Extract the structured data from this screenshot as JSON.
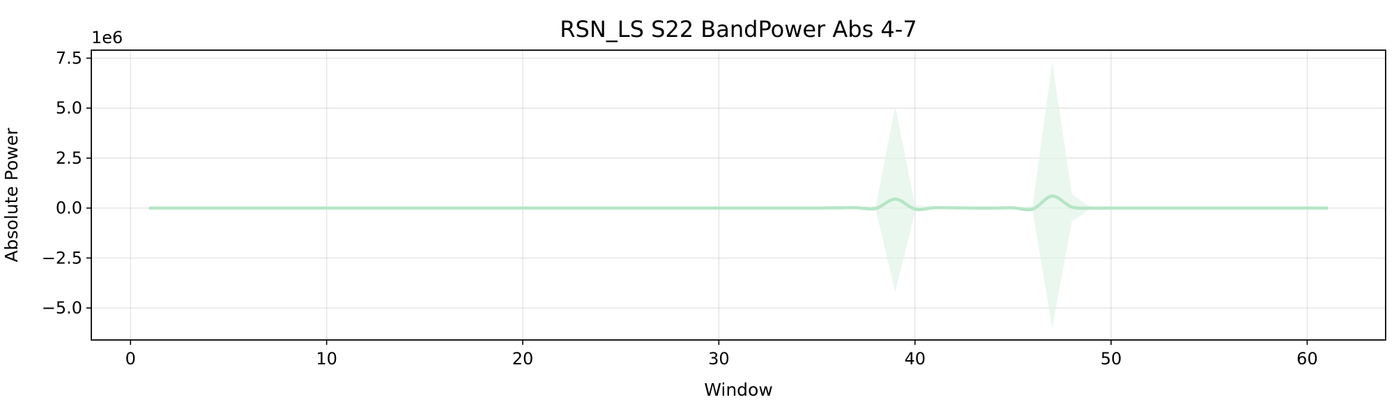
{
  "chart_data": {
    "type": "line",
    "title": "RSN_LS S22 BandPower Abs 4-7",
    "xlabel": "Window",
    "ylabel": "Absolute Power",
    "y_offset_text": "1e6",
    "xlim": [
      -2,
      64
    ],
    "ylim": [
      -6.6,
      7.9
    ],
    "x_ticks": [
      0,
      10,
      20,
      30,
      40,
      50,
      60
    ],
    "x_tick_labels": [
      "0",
      "10",
      "20",
      "30",
      "40",
      "50",
      "60"
    ],
    "y_ticks": [
      -5.0,
      -2.5,
      0.0,
      2.5,
      5.0,
      7.5
    ],
    "y_tick_labels": [
      "−5.0",
      "−2.5",
      "0.0",
      "2.5",
      "5.0",
      "7.5"
    ],
    "grid": true,
    "legend": "none",
    "colors": {
      "line": "#b5e6c6",
      "band": "#dff3e5"
    },
    "series": [
      {
        "x": [
          1,
          2,
          3,
          4,
          5,
          6,
          7,
          8,
          9,
          10,
          11,
          12,
          13,
          14,
          15,
          16,
          17,
          18,
          19,
          20,
          21,
          22,
          23,
          24,
          25,
          26,
          27,
          28,
          29,
          30,
          31,
          32,
          33,
          34,
          35,
          36,
          37,
          38,
          39,
          40,
          41,
          42,
          43,
          44,
          45,
          46,
          47,
          48,
          49,
          50,
          51,
          52,
          53,
          54,
          55,
          56,
          57,
          58,
          59,
          60,
          61
        ],
        "mean": [
          0,
          0,
          0,
          0,
          0,
          0,
          0,
          0,
          0,
          0,
          0,
          0,
          0,
          0,
          0,
          0,
          0,
          0,
          0,
          0,
          0,
          0,
          0,
          0,
          0,
          0,
          0,
          0,
          0,
          0,
          0,
          0,
          0,
          0,
          0,
          0.01,
          0.02,
          -0.02,
          0.45,
          -0.05,
          0.02,
          0.01,
          0.0,
          0.0,
          0.01,
          -0.05,
          0.6,
          0.05,
          0.0,
          0,
          0,
          0,
          0,
          0,
          0,
          0,
          0,
          0,
          0,
          0,
          0
        ],
        "upper": [
          0,
          0,
          0,
          0,
          0,
          0,
          0,
          0,
          0,
          0,
          0,
          0,
          0,
          0,
          0,
          0,
          0,
          0,
          0,
          0,
          0,
          0,
          0,
          0,
          0,
          0,
          0,
          0,
          0,
          0,
          0,
          0,
          0,
          0,
          0,
          0.02,
          0.05,
          0.1,
          5.1,
          0.15,
          0.05,
          0.03,
          0.02,
          0.02,
          0.03,
          0.1,
          7.3,
          0.7,
          0.02,
          0,
          0,
          0,
          0,
          0,
          0,
          0,
          0,
          0,
          0,
          0,
          0
        ],
        "lower": [
          0,
          0,
          0,
          0,
          0,
          0,
          0,
          0,
          0,
          0,
          0,
          0,
          0,
          0,
          0,
          0,
          0,
          0,
          0,
          0,
          0,
          0,
          0,
          0,
          0,
          0,
          0,
          0,
          0,
          0,
          0,
          0,
          0,
          0,
          0,
          0.0,
          -0.01,
          -0.1,
          -4.2,
          -0.2,
          -0.02,
          -0.01,
          -0.02,
          -0.02,
          -0.01,
          -0.15,
          -6.0,
          -0.65,
          -0.02,
          0,
          0,
          0,
          0,
          0,
          0,
          0,
          0,
          0,
          0,
          0,
          0
        ]
      }
    ]
  }
}
